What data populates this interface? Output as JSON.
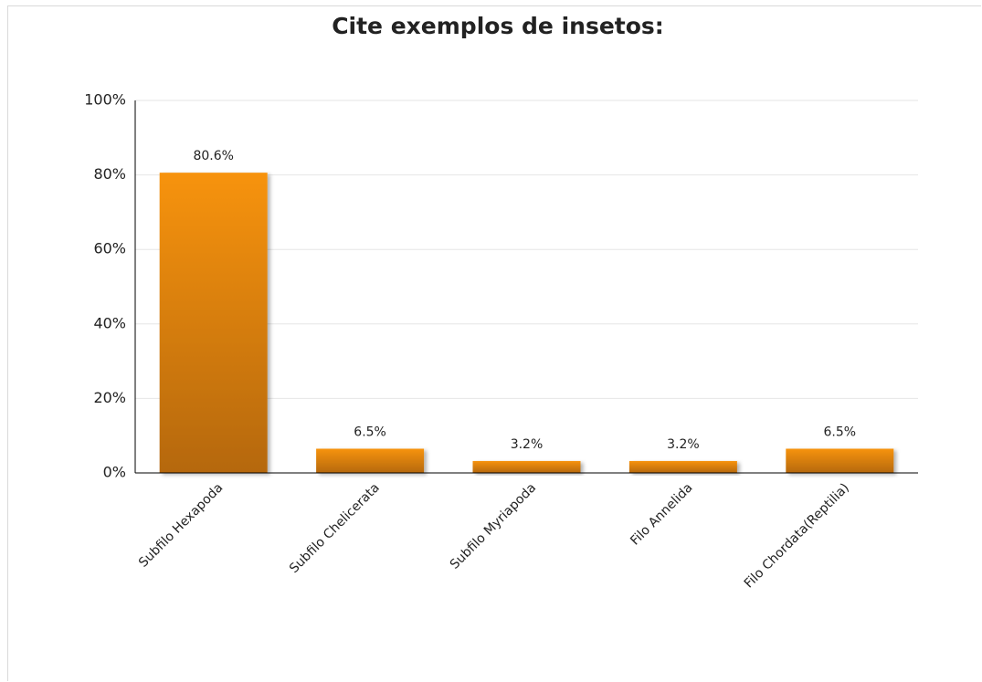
{
  "chart_data": {
    "type": "bar",
    "title": "Cite exemplos de insetos:",
    "categories": [
      "Subfilo Hexapoda",
      "Subfilo Chelicerata",
      "Subfilo Myriapoda",
      "Filo Annelida",
      "Filo Chordata(Reptilia)"
    ],
    "values": [
      80.6,
      6.5,
      3.2,
      3.2,
      6.5
    ],
    "value_labels": [
      "80.6%",
      "6.5%",
      "3.2%",
      "3.2%",
      "6.5%"
    ],
    "color": "#f0900f",
    "ylim": [
      0,
      100
    ],
    "yticks": [
      {
        "value": 0,
        "label": "0%"
      },
      {
        "value": 20,
        "label": "20%"
      },
      {
        "value": 40,
        "label": "40%"
      },
      {
        "value": 60,
        "label": "60%"
      },
      {
        "value": 80,
        "label": "80%"
      },
      {
        "value": 100,
        "label": "100%"
      }
    ],
    "grid": true
  }
}
